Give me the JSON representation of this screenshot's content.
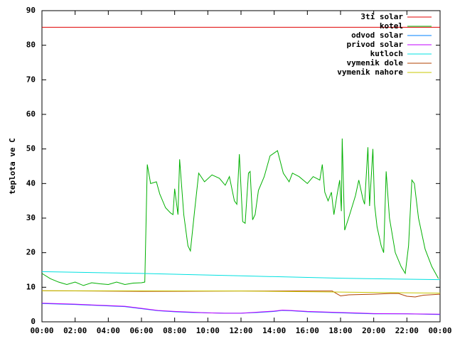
{
  "chart_data": {
    "type": "line",
    "ylabel": "teplota ve C",
    "xlim": [
      0,
      24
    ],
    "xticks": [
      {
        "value": 0,
        "label": "00:00"
      },
      {
        "value": 2,
        "label": "02:00"
      },
      {
        "value": 4,
        "label": "04:00"
      },
      {
        "value": 6,
        "label": "06:00"
      },
      {
        "value": 8,
        "label": "08:00"
      },
      {
        "value": 10,
        "label": "10:00"
      },
      {
        "value": 12,
        "label": "12:00"
      },
      {
        "value": 14,
        "label": "14:00"
      },
      {
        "value": 16,
        "label": "16:00"
      },
      {
        "value": 18,
        "label": "18:00"
      },
      {
        "value": 20,
        "label": "20:00"
      },
      {
        "value": 22,
        "label": "22:00"
      },
      {
        "value": 24,
        "label": "00:00"
      }
    ],
    "ylim": [
      0,
      90
    ],
    "yticks": [
      0,
      10,
      20,
      30,
      40,
      50,
      60,
      70,
      80,
      90
    ],
    "legend": "top-right",
    "series": [
      {
        "name": "3ti solar",
        "color": "#e00000",
        "x": [
          0,
          24
        ],
        "values": [
          85.2,
          85.2
        ]
      },
      {
        "name": "kotel",
        "color": "#00b000",
        "x": [
          0,
          0.5,
          1,
          1.5,
          2,
          2.5,
          3,
          3.5,
          4,
          4.5,
          5,
          5.5,
          6,
          6.2,
          6.35,
          6.55,
          6.9,
          7.1,
          7.45,
          7.75,
          7.9,
          8.0,
          8.2,
          8.3,
          8.55,
          8.8,
          8.95,
          9.2,
          9.45,
          9.8,
          10.25,
          10.7,
          11.05,
          11.3,
          11.6,
          11.75,
          11.9,
          12.1,
          12.25,
          12.45,
          12.55,
          12.7,
          12.85,
          13.05,
          13.4,
          13.75,
          14.2,
          14.55,
          14.9,
          15.1,
          15.5,
          16,
          16.35,
          16.75,
          16.9,
          17.05,
          17.25,
          17.45,
          17.6,
          17.8,
          17.95,
          18.05,
          18.1,
          18.25,
          18.55,
          18.9,
          19.1,
          19.35,
          19.45,
          19.65,
          19.75,
          19.95,
          20.05,
          20.2,
          20.45,
          20.6,
          20.75,
          20.95,
          21.3,
          21.65,
          21.9,
          22.1,
          22.3,
          22.45,
          22.7,
          23.1,
          23.5,
          23.9
        ],
        "values": [
          14,
          12.5,
          11.5,
          10.8,
          11.5,
          10.5,
          11.3,
          11,
          10.8,
          11.5,
          10.8,
          11.2,
          11.3,
          11.5,
          45.5,
          40,
          40.5,
          37,
          33,
          31.5,
          31,
          38.5,
          31,
          47,
          31,
          22,
          20.5,
          32,
          43,
          40.5,
          42.5,
          41.5,
          39.5,
          42,
          35,
          34,
          48.5,
          29,
          28.5,
          43,
          43.5,
          29.5,
          31,
          38,
          42,
          48,
          49.5,
          43,
          40.5,
          43,
          42,
          40,
          42,
          41,
          45.5,
          37.5,
          35,
          37.5,
          31,
          37,
          41,
          32,
          53,
          26.5,
          31,
          36.5,
          41,
          35.5,
          34,
          50.5,
          33.5,
          50,
          34,
          27.5,
          22,
          20,
          43.5,
          30,
          20,
          16,
          14,
          22,
          41,
          40,
          30,
          21,
          16,
          12.5
        ]
      },
      {
        "name": "odvod solar",
        "color": "#0080ff",
        "x": [
          0,
          2,
          4,
          5,
          6,
          7,
          8,
          9,
          10,
          11,
          12,
          13,
          14,
          14.5,
          15,
          16,
          18,
          20,
          22,
          24
        ],
        "values": [
          5.3,
          5.0,
          4.6,
          4.4,
          3.8,
          3.2,
          2.9,
          2.7,
          2.6,
          2.5,
          2.5,
          2.7,
          3.0,
          3.3,
          3.2,
          2.9,
          2.6,
          2.3,
          2.3,
          2.1
        ]
      },
      {
        "name": "privod solar",
        "color": "#c000ff",
        "x": [
          0,
          2,
          4,
          5,
          6,
          7,
          8,
          9,
          10,
          11,
          12,
          13,
          14,
          14.5,
          15,
          16,
          18,
          20,
          22,
          24
        ],
        "values": [
          5.4,
          5.1,
          4.7,
          4.5,
          3.9,
          3.3,
          3.0,
          2.8,
          2.6,
          2.5,
          2.5,
          2.8,
          3.1,
          3.4,
          3.3,
          3.0,
          2.7,
          2.4,
          2.3,
          2.2
        ]
      },
      {
        "name": "kutloch",
        "color": "#00e0e0",
        "x": [
          0,
          6,
          12,
          18,
          24
        ],
        "values": [
          14.5,
          14.0,
          13.3,
          12.6,
          12.2
        ]
      },
      {
        "name": "vymenik dole",
        "color": "#b04000",
        "x": [
          0,
          3,
          6,
          12,
          17.5,
          18,
          18.5,
          20,
          21,
          21.5,
          22,
          22.5,
          23,
          24
        ],
        "values": [
          9.0,
          8.9,
          8.8,
          8.9,
          8.9,
          7.5,
          7.8,
          8.0,
          8.2,
          8.2,
          7.4,
          7.2,
          7.7,
          8.0
        ]
      },
      {
        "name": "vymenik nahore",
        "color": "#c8c800",
        "x": [
          0,
          12,
          18,
          24
        ],
        "values": [
          9.0,
          8.9,
          8.6,
          8.3
        ]
      }
    ]
  }
}
